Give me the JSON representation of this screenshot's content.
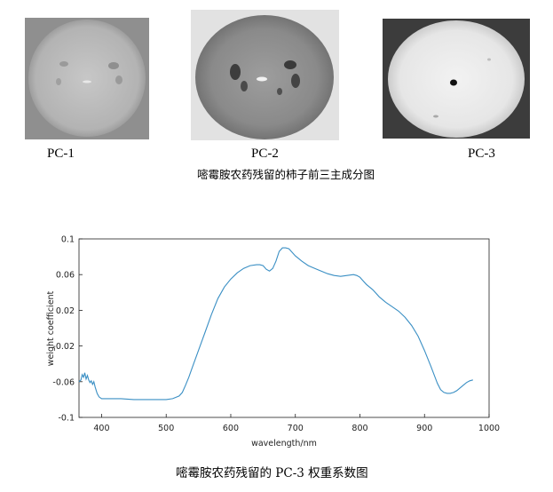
{
  "figure_top": {
    "panels": [
      {
        "label": "PC-1"
      },
      {
        "label": "PC-2"
      },
      {
        "label": "PC-3"
      }
    ],
    "caption": "嘧霉胺农药残留的柿子前三主成分图"
  },
  "figure_bottom": {
    "caption": "嘧霉胺农药残留的 PC-3 权重系数图"
  },
  "chart_data": {
    "type": "line",
    "title": "",
    "xlabel": "wavelength/nm",
    "ylabel": "weight coefficient",
    "xlim": [
      365,
      1000
    ],
    "ylim": [
      -0.1,
      0.1
    ],
    "xticks": [
      400,
      500,
      600,
      700,
      800,
      900,
      1000
    ],
    "yticks": [
      0.1,
      0.06,
      0.02,
      -0.02,
      -0.06,
      -0.1
    ],
    "ytick_labels": [
      "0.1",
      "0.06",
      "0.02",
      "-0.02",
      "-0.06",
      "-0.1"
    ],
    "grid": false,
    "line_color": "#3a8fc4",
    "series": [
      {
        "x": [
          365,
          368,
          370,
          372,
          374,
          376,
          378,
          380,
          382,
          384,
          386,
          388,
          390,
          393,
          396,
          400,
          410,
          430,
          450,
          470,
          490,
          500,
          510,
          520,
          525,
          530,
          535,
          540,
          550,
          560,
          570,
          580,
          590,
          600,
          610,
          620,
          630,
          640,
          645,
          650,
          655,
          660,
          665,
          670,
          675,
          680,
          685,
          690,
          695,
          700,
          710,
          720,
          730,
          740,
          750,
          760,
          770,
          780,
          790,
          795,
          800,
          805,
          810,
          820,
          830,
          840,
          850,
          860,
          870,
          880,
          890,
          900,
          910,
          920,
          925,
          930,
          935,
          940,
          945,
          950,
          955,
          960,
          965,
          970,
          975
        ],
        "y": [
          -0.06,
          -0.058,
          -0.052,
          -0.055,
          -0.05,
          -0.057,
          -0.053,
          -0.058,
          -0.061,
          -0.059,
          -0.063,
          -0.06,
          -0.066,
          -0.073,
          -0.077,
          -0.079,
          -0.079,
          -0.079,
          -0.08,
          -0.08,
          -0.08,
          -0.08,
          -0.079,
          -0.076,
          -0.072,
          -0.064,
          -0.055,
          -0.045,
          -0.025,
          -0.005,
          0.015,
          0.033,
          0.046,
          0.055,
          0.062,
          0.067,
          0.07,
          0.071,
          0.071,
          0.07,
          0.066,
          0.064,
          0.067,
          0.075,
          0.086,
          0.09,
          0.09,
          0.089,
          0.085,
          0.081,
          0.075,
          0.07,
          0.067,
          0.064,
          0.061,
          0.059,
          0.058,
          0.059,
          0.06,
          0.059,
          0.057,
          0.053,
          0.049,
          0.043,
          0.035,
          0.029,
          0.024,
          0.019,
          0.012,
          0.003,
          -0.009,
          -0.025,
          -0.043,
          -0.062,
          -0.069,
          -0.072,
          -0.073,
          -0.073,
          -0.072,
          -0.07,
          -0.067,
          -0.064,
          -0.061,
          -0.059,
          -0.058
        ]
      }
    ]
  }
}
